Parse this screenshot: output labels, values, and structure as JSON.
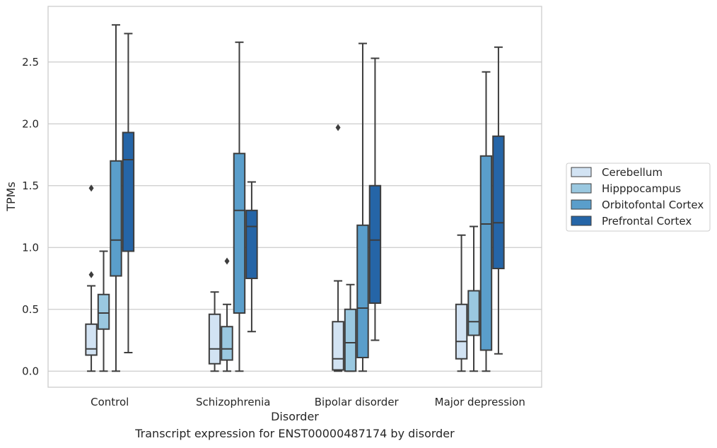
{
  "caption": "Transcript expression for ENST00000487174 by disorder",
  "chart_data": {
    "type": "box",
    "xlabel": "Disorder",
    "ylabel": "TPMs",
    "ylim": [
      -0.13,
      2.95
    ],
    "yticks": [
      0.0,
      0.5,
      1.0,
      1.5,
      2.0,
      2.5
    ],
    "ytick_labels": [
      "0.0",
      "0.5",
      "1.0",
      "1.5",
      "2.0",
      "2.5"
    ],
    "grid": "horizontal",
    "legend_position": "right",
    "categories": [
      "Control",
      "Schizophrenia",
      "Bipolar disorder",
      "Major depression"
    ],
    "series": [
      {
        "name": "Cerebellum",
        "color": "#d2e3f3",
        "boxes": [
          {
            "whislo": 0.0,
            "q1": 0.13,
            "med": 0.18,
            "q3": 0.38,
            "whishi": 0.69,
            "fliers": [
              0.78,
              1.48
            ]
          },
          {
            "whislo": 0.0,
            "q1": 0.06,
            "med": 0.18,
            "q3": 0.46,
            "whishi": 0.64,
            "fliers": []
          },
          {
            "whislo": 0.0,
            "q1": 0.01,
            "med": 0.1,
            "q3": 0.4,
            "whishi": 0.73,
            "fliers": [
              1.97
            ]
          },
          {
            "whislo": 0.0,
            "q1": 0.1,
            "med": 0.24,
            "q3": 0.54,
            "whishi": 1.1,
            "fliers": []
          }
        ]
      },
      {
        "name": "Hipppocampus",
        "color": "#9ac8e0",
        "boxes": [
          {
            "whislo": 0.0,
            "q1": 0.34,
            "med": 0.47,
            "q3": 0.62,
            "whishi": 0.97,
            "fliers": []
          },
          {
            "whislo": 0.0,
            "q1": 0.09,
            "med": 0.18,
            "q3": 0.36,
            "whishi": 0.54,
            "fliers": [
              0.89
            ]
          },
          {
            "whislo": 0.0,
            "q1": 0.0,
            "med": 0.23,
            "q3": 0.5,
            "whishi": 0.7,
            "fliers": []
          },
          {
            "whislo": 0.0,
            "q1": 0.29,
            "med": 0.4,
            "q3": 0.65,
            "whishi": 1.17,
            "fliers": []
          }
        ]
      },
      {
        "name": "Orbitofontal Cortex",
        "color": "#5a9ecb",
        "boxes": [
          {
            "whislo": 0.0,
            "q1": 0.77,
            "med": 1.06,
            "q3": 1.7,
            "whishi": 2.8,
            "fliers": []
          },
          {
            "whislo": 0.0,
            "q1": 0.47,
            "med": 1.3,
            "q3": 1.76,
            "whishi": 2.66,
            "fliers": []
          },
          {
            "whislo": 0.0,
            "q1": 0.11,
            "med": 0.51,
            "q3": 1.18,
            "whishi": 2.65,
            "fliers": []
          },
          {
            "whislo": 0.0,
            "q1": 0.17,
            "med": 1.19,
            "q3": 1.74,
            "whishi": 2.42,
            "fliers": []
          }
        ]
      },
      {
        "name": "Prefrontal Cortex",
        "color": "#2565a7",
        "boxes": [
          {
            "whislo": 0.15,
            "q1": 0.97,
            "med": 1.71,
            "q3": 1.93,
            "whishi": 2.73,
            "fliers": []
          },
          {
            "whislo": 0.32,
            "q1": 0.75,
            "med": 1.17,
            "q3": 1.3,
            "whishi": 1.53,
            "fliers": []
          },
          {
            "whislo": 0.25,
            "q1": 0.55,
            "med": 1.06,
            "q3": 1.5,
            "whishi": 2.53,
            "fliers": []
          },
          {
            "whislo": 0.14,
            "q1": 0.83,
            "med": 1.2,
            "q3": 1.9,
            "whishi": 2.62,
            "fliers": []
          }
        ]
      }
    ]
  }
}
